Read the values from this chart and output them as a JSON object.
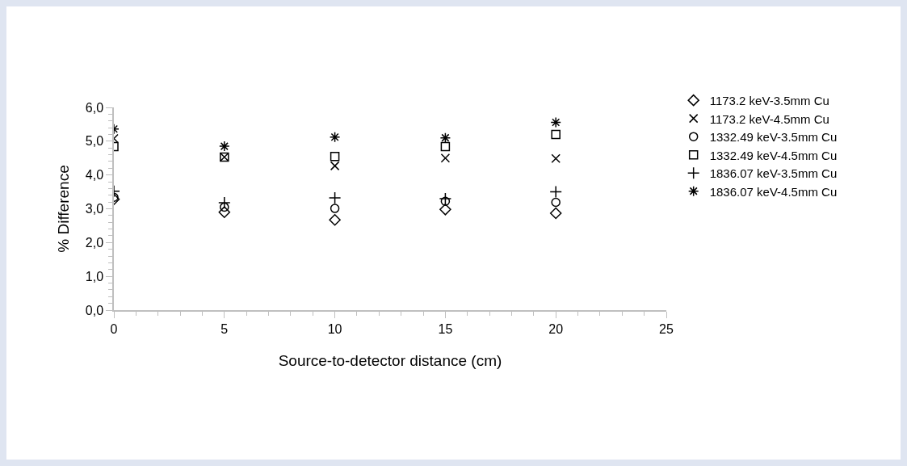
{
  "chart_data": {
    "type": "scatter",
    "xlabel": "Source-to-detector distance (cm)",
    "ylabel": "% Difference",
    "x": [
      0,
      5,
      10,
      15,
      20
    ],
    "xlim": [
      0,
      25
    ],
    "xticks": [
      0,
      5,
      10,
      15,
      20,
      25
    ],
    "ylim": [
      0,
      6
    ],
    "yticks": [
      {
        "value": 0,
        "label": "0,0"
      },
      {
        "value": 1,
        "label": "1,0"
      },
      {
        "value": 2,
        "label": "2,0"
      },
      {
        "value": 3,
        "label": "3,0"
      },
      {
        "value": 4,
        "label": "4,0"
      },
      {
        "value": 5,
        "label": "5,0"
      },
      {
        "value": 6,
        "label": "6,0"
      }
    ],
    "grid": false,
    "legend": "top right",
    "series": [
      {
        "name": "1173.2 keV-3.5mm Cu",
        "color": "#000000",
        "marker": "diamond",
        "values": [
          3.28,
          2.9,
          2.67,
          2.98,
          2.87
        ]
      },
      {
        "name": "1173.2 keV-4.5mm Cu",
        "color": "#000000",
        "marker": "x",
        "values": [
          5.08,
          4.53,
          4.27,
          4.5,
          4.49
        ]
      },
      {
        "name": "1332.49 keV-3.5mm Cu",
        "color": "#000000",
        "marker": "circle",
        "values": [
          3.34,
          3.05,
          3.01,
          3.22,
          3.19
        ]
      },
      {
        "name": "1332.49 keV-4.5mm Cu",
        "color": "#000000",
        "marker": "square",
        "values": [
          4.84,
          4.53,
          4.55,
          4.84,
          5.2
        ]
      },
      {
        "name": "1836.07 keV-3.5mm Cu",
        "color": "#000000",
        "marker": "cross",
        "values": [
          3.52,
          3.18,
          3.32,
          3.3,
          3.5
        ]
      },
      {
        "name": "1836.07 keV-4.5mm Cu",
        "color": "#000000",
        "values": [
          5.36,
          4.85,
          5.12,
          5.1,
          5.56
        ]
      }
    ]
  }
}
